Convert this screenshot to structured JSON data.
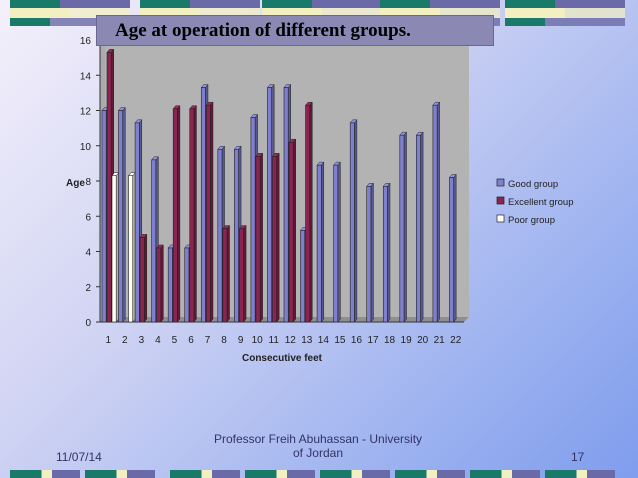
{
  "slide": {
    "title": "Age at operation of different groups.",
    "footer_date": "11/07/14",
    "footer_author": "Professor Freih Abuhassan - University of Jordan",
    "page_number": "17"
  },
  "colors": {
    "good": "#7f7fd0",
    "excellent": "#8b2450",
    "poor": "#fffff0",
    "deco_green": "#1a7a6a",
    "deco_purple": "#6a6aa8",
    "deco_cream": "#f2f0c0"
  },
  "chart_data": {
    "type": "bar",
    "xlabel": "Consecutive feet",
    "ylabel": "Age",
    "ylim": [
      0,
      16
    ],
    "yticks": [
      0,
      2,
      4,
      6,
      8,
      10,
      12,
      14,
      16
    ],
    "categories": [
      "1",
      "2",
      "3",
      "4",
      "5",
      "6",
      "7",
      "8",
      "9",
      "10",
      "11",
      "12",
      "13",
      "14",
      "15",
      "16",
      "17",
      "18",
      "19",
      "20",
      "21",
      "22"
    ],
    "series": [
      {
        "name": "Good group",
        "values": [
          12,
          12,
          11.3,
          9.2,
          4.2,
          4.2,
          13.3,
          9.8,
          9.8,
          11.6,
          13.3,
          13.3,
          5.2,
          8.9,
          8.9,
          11.3,
          7.7,
          7.7,
          10.6,
          10.6,
          12.3,
          8.2
        ]
      },
      {
        "name": "Excellent group",
        "values": [
          15.3,
          null,
          4.8,
          4.2,
          12.1,
          12.1,
          12.3,
          5.3,
          5.3,
          9.4,
          9.4,
          10.2,
          12.3,
          null,
          null,
          null,
          null,
          null,
          null,
          null,
          null,
          null
        ]
      },
      {
        "name": "Poor group",
        "values": [
          8.3,
          8.3,
          null,
          null,
          null,
          null,
          null,
          null,
          null,
          null,
          null,
          null,
          null,
          null,
          null,
          null,
          null,
          null,
          null,
          null,
          null,
          null
        ]
      }
    ],
    "legend_position": "right",
    "grid": false
  }
}
